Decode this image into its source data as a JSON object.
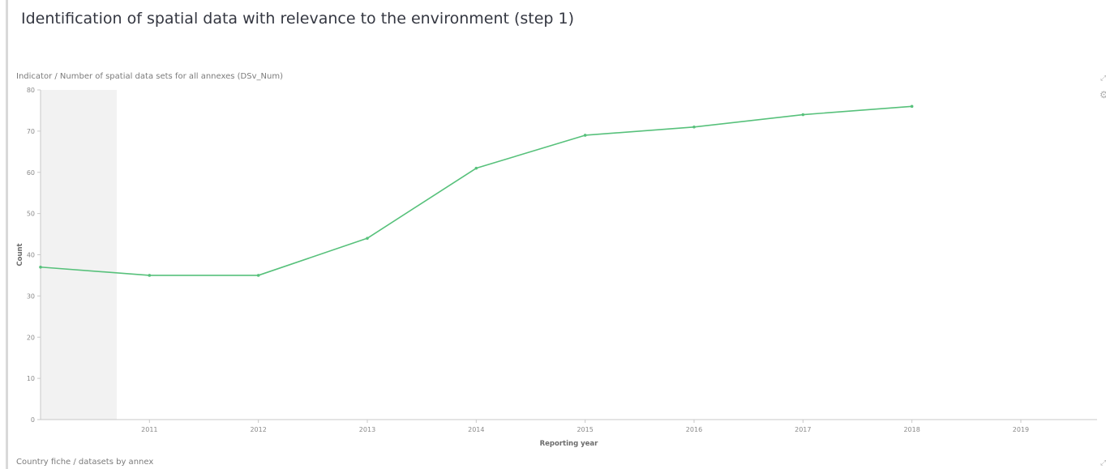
{
  "page": {
    "title": "Identification of spatial data with relevance to the environment (step 1)"
  },
  "panels": {
    "indicator_title": "Indicator / Number of spatial data sets for all annexes (DSv_Num)",
    "country_fiche_title": "Country fiche / datasets by annex"
  },
  "icons": {
    "expand": "expand-icon",
    "options": "options-icon"
  },
  "colors": {
    "series": "#57c17b",
    "grid_axis": "#c8c8c8",
    "shaded_band": "#f2f2f2",
    "tick_text": "#8a8a8a",
    "axis_title": "#6b6b6b"
  },
  "chart_data": {
    "type": "line",
    "xlabel": "Reporting year",
    "ylabel": "Count",
    "xlim": [
      2010,
      2019.7
    ],
    "ylim": [
      0,
      80
    ],
    "x_ticks": [
      "2011",
      "2012",
      "2013",
      "2014",
      "2015",
      "2016",
      "2017",
      "2018",
      "2019"
    ],
    "y_ticks": [
      "0",
      "10",
      "20",
      "30",
      "40",
      "50",
      "60",
      "70",
      "80"
    ],
    "shaded_x_range": [
      2010,
      2010.7
    ],
    "grid": false,
    "legend": "none",
    "series": [
      {
        "x": [
          2010,
          2011,
          2012,
          2013,
          2014,
          2015,
          2016,
          2017,
          2018
        ],
        "y": [
          37,
          35,
          35,
          44,
          61,
          69,
          71,
          74,
          76
        ]
      }
    ]
  }
}
